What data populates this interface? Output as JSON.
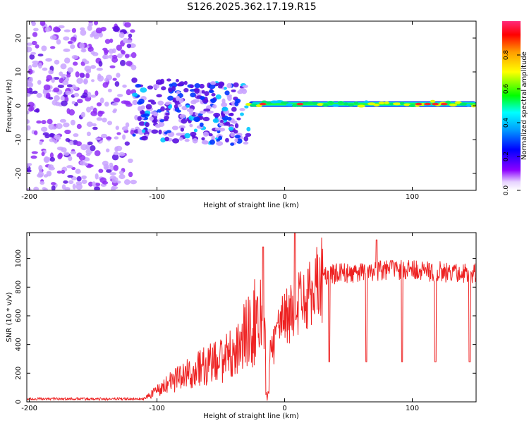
{
  "chart_data": [
    {
      "type": "heatmap",
      "title": "S126.2025.362.17.19.R15",
      "xlabel": "Height of straight line (km)",
      "ylabel": "Frequency (Hz)",
      "xlim": [
        -202,
        150
      ],
      "ylim": [
        -25,
        25
      ],
      "xticks": [
        -200,
        -100,
        0,
        100
      ],
      "yticks": [
        -20,
        -10,
        0,
        10,
        20
      ],
      "colorbar": {
        "label": "Normalized spectral amplitude",
        "range": [
          0,
          1
        ],
        "ticks": [
          "0.0",
          "0.2",
          "0.4",
          "0.6",
          "0.8"
        ],
        "tick_values": [
          0.0,
          0.2,
          0.4,
          0.6,
          0.8
        ]
      },
      "regions": [
        {
          "name": "noise",
          "x_range": [
            -202,
            -118
          ],
          "freq_range": [
            -25,
            25
          ],
          "amplitude": 0.12
        },
        {
          "name": "scattered",
          "x_range": [
            -118,
            -28
          ],
          "freq_range": [
            -20,
            10
          ],
          "amplitude": 0.25
        },
        {
          "name": "trace",
          "x_range": [
            -28,
            150
          ],
          "freq_center": 0.5,
          "amplitude": 0.85
        }
      ],
      "trace_hotspots_km": [
        -17,
        12,
        105,
        112,
        118,
        125
      ]
    },
    {
      "type": "line",
      "xlabel": "Height of straight line (km)",
      "ylabel": "SNR (10 * v/v)",
      "xlim": [
        -202,
        150
      ],
      "ylim": [
        0,
        1180
      ],
      "xticks": [
        -200,
        -100,
        0,
        100
      ],
      "yticks": [
        0,
        200,
        400,
        600,
        800,
        1000
      ],
      "series": [
        {
          "name": "SNR",
          "color": "#ee2222",
          "x": [
            -202,
            -110,
            -100,
            -80,
            -60,
            -40,
            -20,
            -12,
            0,
            15,
            25,
            35,
            50,
            80,
            150
          ],
          "y": [
            20,
            20,
            80,
            180,
            260,
            330,
            600,
            320,
            600,
            700,
            820,
            890,
            900,
            920,
            900
          ]
        }
      ],
      "dips_km": [
        35,
        64,
        92,
        118,
        145
      ],
      "peaks": [
        {
          "x": -17,
          "y": 1080
        },
        {
          "x": 8,
          "y": 1180
        },
        {
          "x": 72,
          "y": 1130
        }
      ]
    }
  ]
}
